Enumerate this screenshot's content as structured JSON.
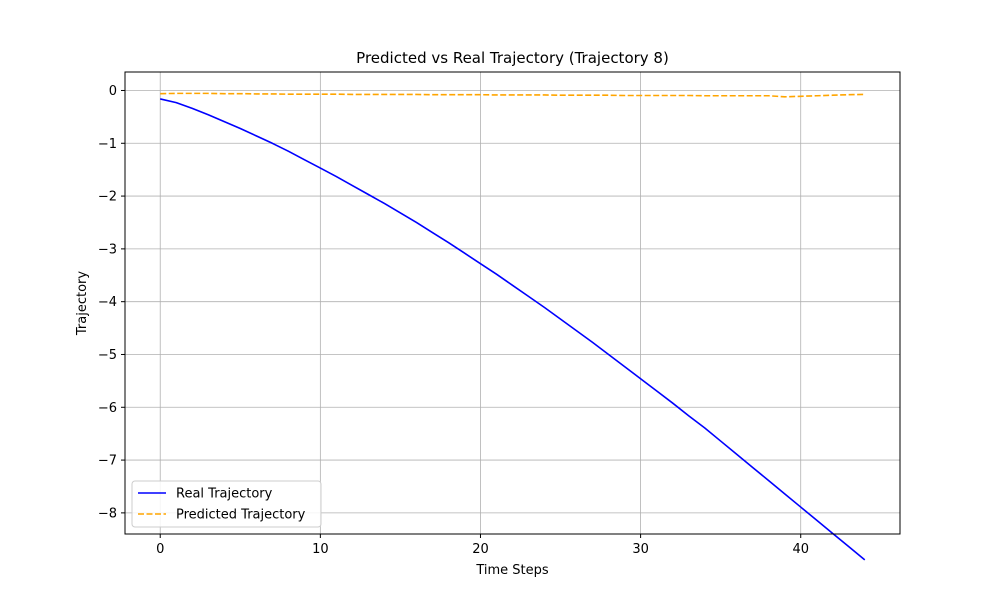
{
  "chart_data": {
    "type": "line",
    "title": "Predicted vs Real Trajectory (Trajectory 8)",
    "xlabel": "Time Steps",
    "ylabel": "Trajectory",
    "xlim": [
      -2.2,
      46.2
    ],
    "ylim": [
      -8.4,
      0.35
    ],
    "xticks": [
      0,
      10,
      20,
      30,
      40
    ],
    "yticks": [
      0,
      -1,
      -2,
      -3,
      -4,
      -5,
      -6,
      -7,
      -8
    ],
    "grid": true,
    "legend_position": "lower-left",
    "series": [
      {
        "name": "Real Trajectory",
        "color": "#0000ff",
        "style": "solid",
        "x": [
          0,
          1,
          2,
          3,
          4,
          5,
          6,
          7,
          8,
          9,
          10,
          11,
          12,
          13,
          14,
          15,
          16,
          17,
          18,
          19,
          20,
          21,
          22,
          23,
          24,
          25,
          26,
          27,
          28,
          29,
          30,
          31,
          32,
          33,
          34,
          35,
          36,
          37,
          38,
          39,
          40,
          41,
          42,
          43,
          44
        ],
        "values": [
          -0.16,
          -0.23,
          -0.34,
          -0.46,
          -0.59,
          -0.72,
          -0.86,
          -1.0,
          -1.15,
          -1.31,
          -1.47,
          -1.63,
          -1.8,
          -1.97,
          -2.14,
          -2.32,
          -2.5,
          -2.69,
          -2.88,
          -3.08,
          -3.28,
          -3.48,
          -3.69,
          -3.9,
          -4.11,
          -4.33,
          -4.55,
          -4.77,
          -5.0,
          -5.23,
          -5.46,
          -5.69,
          -5.92,
          -6.16,
          -6.39,
          -6.64,
          -6.89,
          -7.14,
          -7.39,
          -7.64,
          -7.89,
          -8.14,
          -8.39,
          -8.64,
          -8.89
        ]
      },
      {
        "name": "Predicted Trajectory",
        "color": "#ffa500",
        "style": "dashed",
        "x": [
          0,
          1,
          2,
          3,
          4,
          5,
          6,
          7,
          8,
          9,
          10,
          11,
          12,
          13,
          14,
          15,
          16,
          17,
          18,
          19,
          20,
          21,
          22,
          23,
          24,
          25,
          26,
          27,
          28,
          29,
          30,
          31,
          32,
          33,
          34,
          35,
          36,
          37,
          38,
          39,
          40,
          41,
          42,
          43,
          44
        ],
        "values": [
          -0.06,
          -0.055,
          -0.055,
          -0.055,
          -0.06,
          -0.06,
          -0.065,
          -0.065,
          -0.07,
          -0.07,
          -0.07,
          -0.07,
          -0.075,
          -0.075,
          -0.075,
          -0.075,
          -0.075,
          -0.08,
          -0.08,
          -0.08,
          -0.08,
          -0.085,
          -0.085,
          -0.085,
          -0.085,
          -0.09,
          -0.09,
          -0.09,
          -0.09,
          -0.095,
          -0.095,
          -0.095,
          -0.095,
          -0.095,
          -0.1,
          -0.1,
          -0.1,
          -0.1,
          -0.1,
          -0.12,
          -0.11,
          -0.1,
          -0.09,
          -0.08,
          -0.075
        ]
      }
    ]
  }
}
